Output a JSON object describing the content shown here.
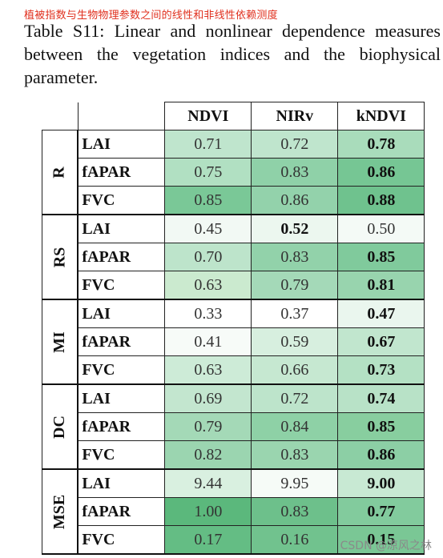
{
  "cn_title": "植被指数与生物物理参数之间的线性和非线性依赖测度",
  "caption": "Table S11: Linear and nonlinear dependence measures between the vegetation indices and the biophysical parameter.",
  "columns": [
    "NDVI",
    "NIRv",
    "kNDVI"
  ],
  "groups": [
    {
      "name": "R",
      "rows": [
        {
          "param": "LAI",
          "values": [
            "0.71",
            "0.72",
            "0.78"
          ],
          "bold": [
            false,
            false,
            true
          ],
          "shade": [
            "#bfe5cd",
            "#bfe5cd",
            "#a9dcbb"
          ]
        },
        {
          "param": "fAPAR",
          "values": [
            "0.75",
            "0.83",
            "0.86"
          ],
          "bold": [
            false,
            false,
            true
          ],
          "shade": [
            "#b1e0c2",
            "#8fd1a8",
            "#76c694"
          ]
        },
        {
          "param": "FVC",
          "values": [
            "0.85",
            "0.86",
            "0.88"
          ],
          "bold": [
            false,
            false,
            true
          ],
          "shade": [
            "#7ac897",
            "#93d2ab",
            "#6fc28e"
          ]
        }
      ]
    },
    {
      "name": "RS",
      "rows": [
        {
          "param": "LAI",
          "values": [
            "0.45",
            "0.52",
            "0.50"
          ],
          "bold": [
            false,
            true,
            false
          ],
          "shade": [
            "#f2f9f4",
            "#ecf7ef",
            "#f4faf6"
          ]
        },
        {
          "param": "fAPAR",
          "values": [
            "0.70",
            "0.83",
            "0.85"
          ],
          "bold": [
            false,
            false,
            true
          ],
          "shade": [
            "#bde4cb",
            "#92d2aa",
            "#80ca9c"
          ]
        },
        {
          "param": "FVC",
          "values": [
            "0.63",
            "0.79",
            "0.81"
          ],
          "bold": [
            false,
            false,
            true
          ],
          "shade": [
            "#cbeacf",
            "#a4d9b8",
            "#98d4ae"
          ]
        }
      ]
    },
    {
      "name": "MI",
      "rows": [
        {
          "param": "LAI",
          "values": [
            "0.33",
            "0.37",
            "0.47"
          ],
          "bold": [
            false,
            false,
            true
          ],
          "shade": [
            "#ffffff",
            "#ffffff",
            "#eaf6ee"
          ]
        },
        {
          "param": "fAPAR",
          "values": [
            "0.41",
            "0.59",
            "0.67"
          ],
          "bold": [
            false,
            false,
            true
          ],
          "shade": [
            "#f7fbf8",
            "#d7efdf",
            "#c1e6ce"
          ]
        },
        {
          "param": "FVC",
          "values": [
            "0.63",
            "0.66",
            "0.73"
          ],
          "bold": [
            false,
            false,
            true
          ],
          "shade": [
            "#cdebd7",
            "#c6e8d1",
            "#b4e1c4"
          ]
        }
      ]
    },
    {
      "name": "DC",
      "rows": [
        {
          "param": "LAI",
          "values": [
            "0.69",
            "0.72",
            "0.74"
          ],
          "bold": [
            false,
            false,
            true
          ],
          "shade": [
            "#c3e6cf",
            "#bde4cb",
            "#b8e2c7"
          ]
        },
        {
          "param": "fAPAR",
          "values": [
            "0.79",
            "0.84",
            "0.85"
          ],
          "bold": [
            false,
            false,
            true
          ],
          "shade": [
            "#a4d9b7",
            "#8ed1a6",
            "#88ce9f"
          ]
        },
        {
          "param": "FVC",
          "values": [
            "0.82",
            "0.83",
            "0.86"
          ],
          "bold": [
            false,
            false,
            true
          ],
          "shade": [
            "#9bd5b0",
            "#9ad5af",
            "#8ccfa5"
          ]
        }
      ]
    },
    {
      "name": "MSE",
      "rows": [
        {
          "param": "LAI",
          "values": [
            "9.44",
            "9.95",
            "9.00"
          ],
          "bold": [
            false,
            false,
            true
          ],
          "shade": [
            "#d9f0e0",
            "#f6fbf7",
            "#c8e9d3"
          ]
        },
        {
          "param": "fAPAR",
          "values": [
            "1.00",
            "0.83",
            "0.77"
          ],
          "bold": [
            false,
            false,
            true
          ],
          "shade": [
            "#5bb87c",
            "#6dc08b",
            "#82cb9d"
          ]
        },
        {
          "param": "FVC",
          "values": [
            "0.17",
            "0.16",
            "0.15"
          ],
          "bold": [
            false,
            false,
            true
          ],
          "shade": [
            "#64bd84",
            "#71c28e",
            "#7ac795"
          ]
        }
      ]
    }
  ],
  "watermark": "CSDN @凉风之林"
}
